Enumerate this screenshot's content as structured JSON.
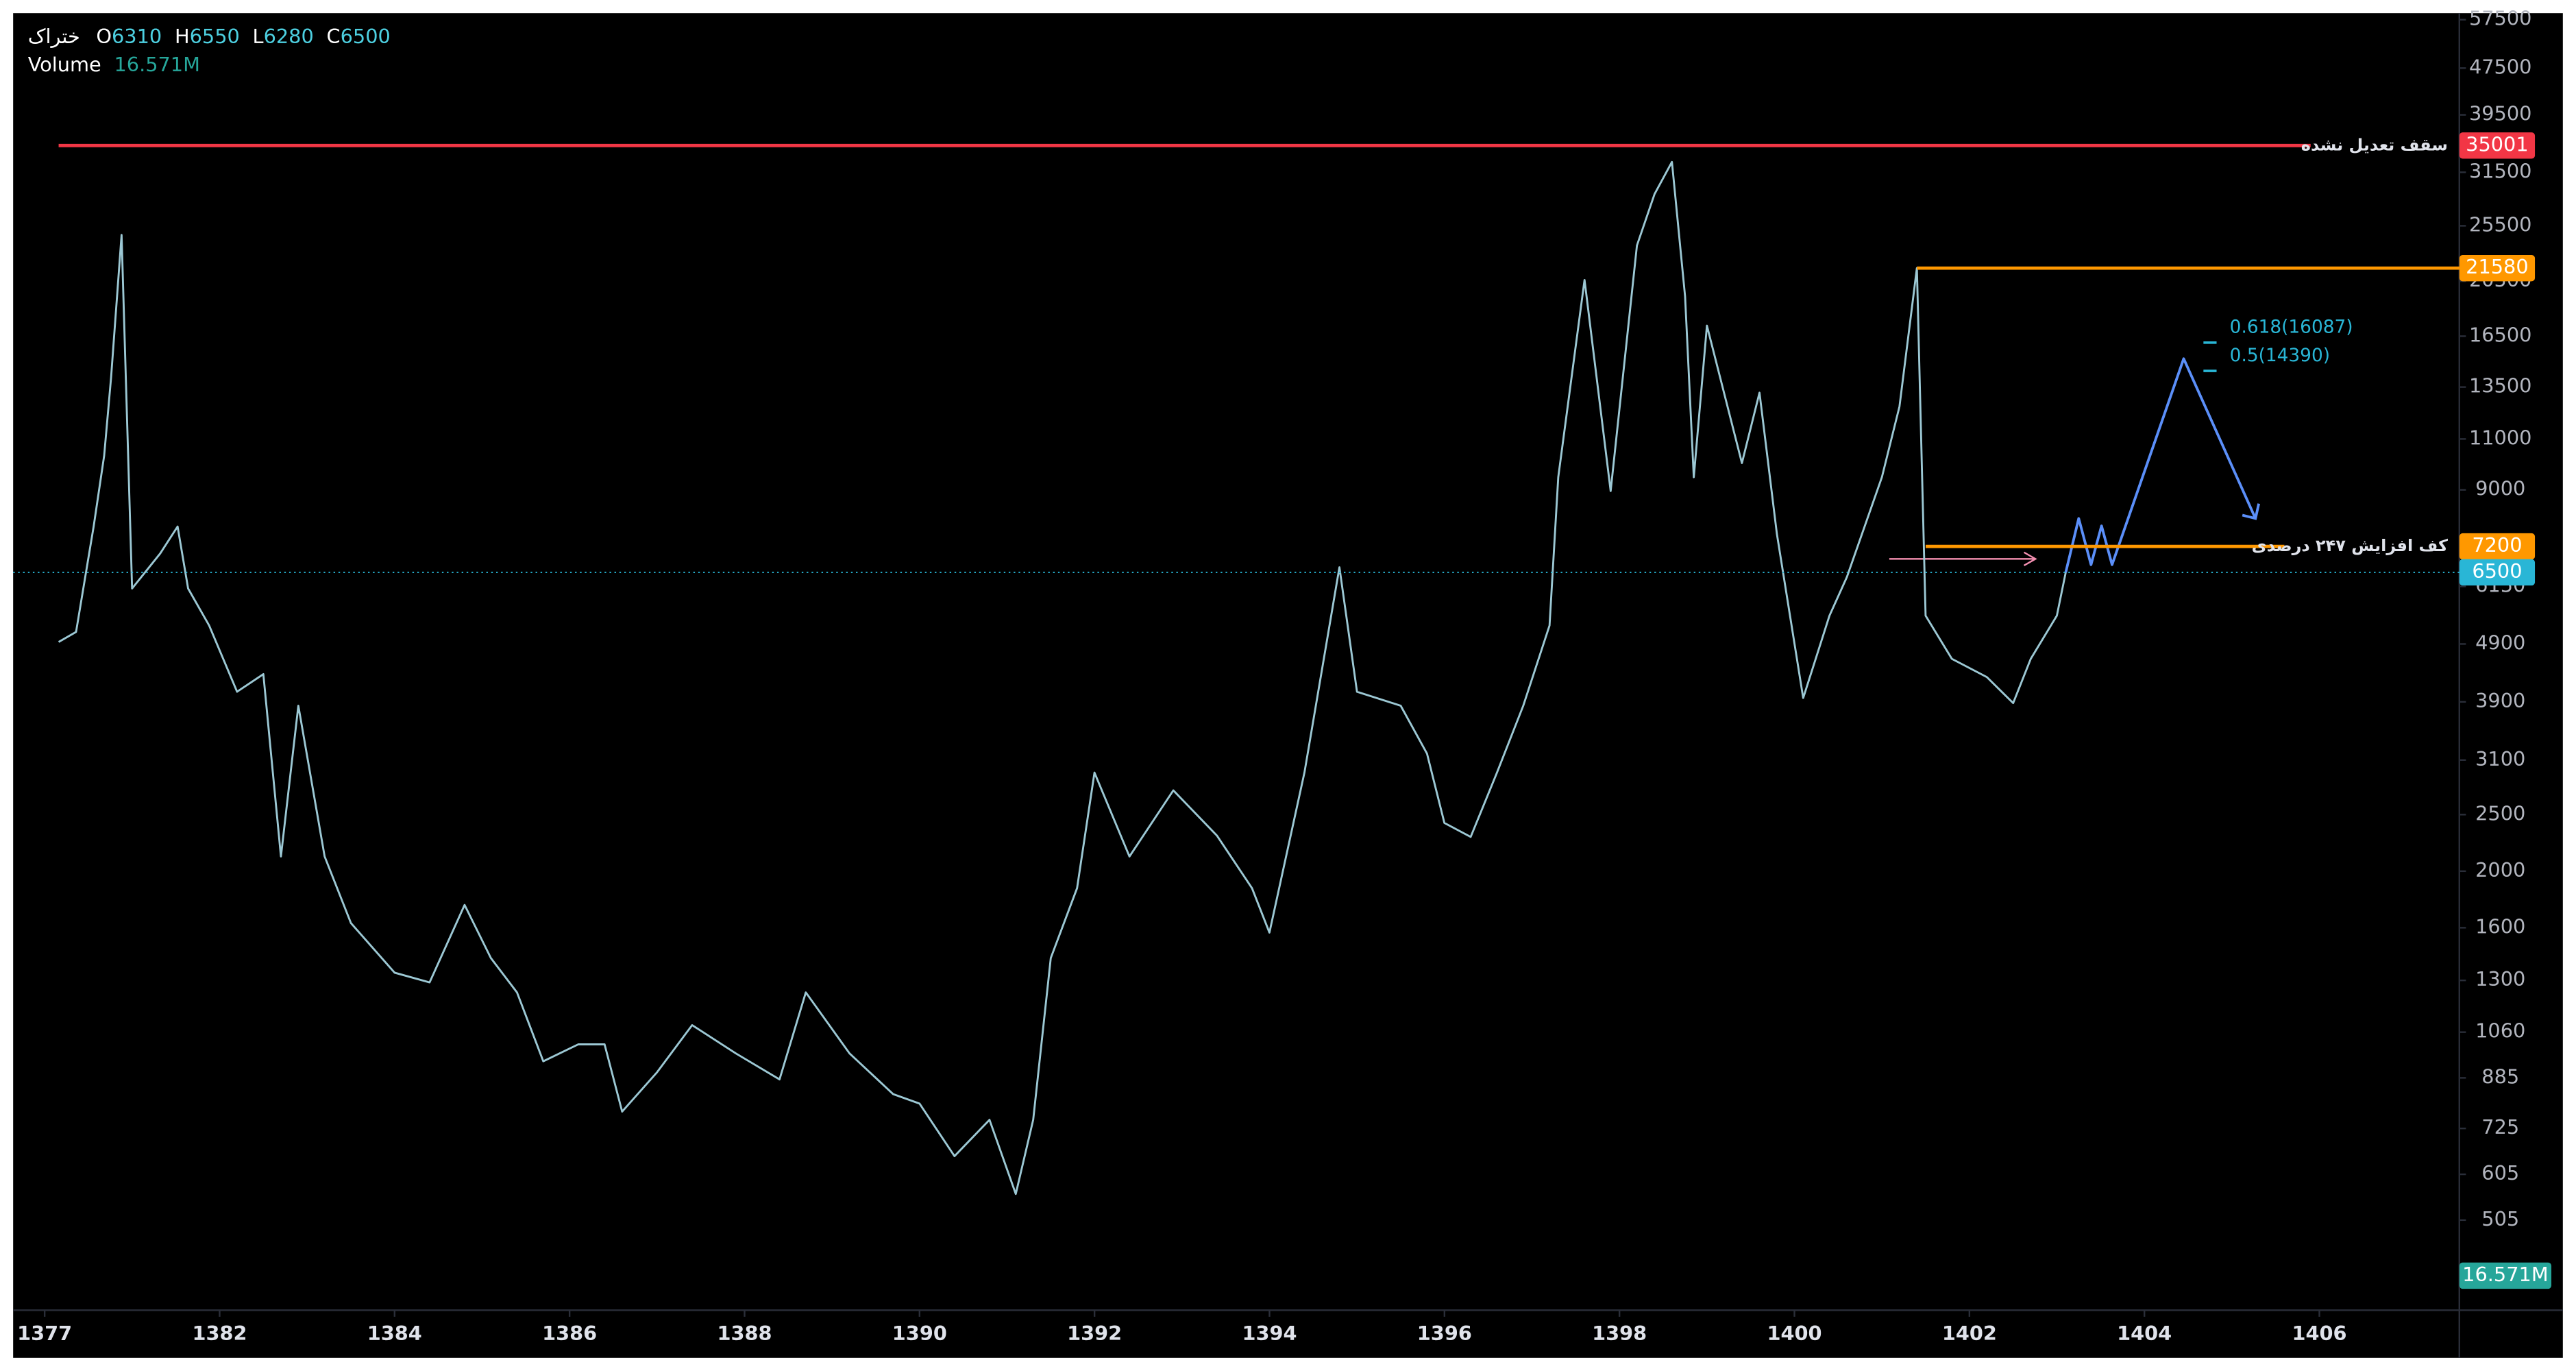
{
  "header": {
    "symbol": "ختراک",
    "ohlc": [
      {
        "key": "O",
        "value": 6310
      },
      {
        "key": "H",
        "value": 6550
      },
      {
        "key": "L",
        "value": 6280
      },
      {
        "key": "C",
        "value": 6500
      }
    ],
    "volume_label": "Volume",
    "volume_value": "16.571M"
  },
  "chart_data": {
    "type": "line",
    "log_scale": true,
    "grid": false,
    "x": [
      1377.4,
      1377.9,
      1378.4,
      1378.7,
      1378.9,
      1379.2,
      1379.5,
      1380.3,
      1380.8,
      1381.1,
      1381.7,
      1382.2,
      1382.5,
      1382.7,
      1382.9,
      1383.2,
      1383.5,
      1384.0,
      1384.4,
      1384.8,
      1385.1,
      1385.4,
      1385.7,
      1386.1,
      1386.4,
      1386.6,
      1387.0,
      1387.4,
      1387.9,
      1388.4,
      1388.7,
      1389.2,
      1389.7,
      1390.0,
      1390.4,
      1390.8,
      1391.1,
      1391.3,
      1391.5,
      1391.8,
      1392.0,
      1392.4,
      1392.9,
      1393.4,
      1393.8,
      1394.0,
      1394.4,
      1394.8,
      1395.0,
      1395.5,
      1395.8,
      1396.0,
      1396.3,
      1396.6,
      1396.9,
      1397.2,
      1397.3,
      1397.6,
      1397.9,
      1398.2,
      1398.4,
      1398.6,
      1398.75,
      1398.85,
      1399.0,
      1399.4,
      1399.6,
      1399.8,
      1400.1,
      1400.4,
      1400.6,
      1401.0,
      1401.2,
      1401.4,
      1401.5,
      1401.8,
      1402.2,
      1402.5,
      1402.7,
      1403.0,
      1403.1
    ],
    "series": [
      {
        "color": "#9cc8d4",
        "values": [
          4940,
          5140,
          7790,
          10300,
          14000,
          24600,
          6100,
          7000,
          7790,
          6100,
          5270,
          4060,
          4350,
          2120,
          3840,
          2120,
          1630,
          1340,
          1290,
          1750,
          1420,
          1240,
          945,
          1010,
          1010,
          775,
          905,
          1090,
          975,
          880,
          1240,
          975,
          830,
          800,
          650,
          750,
          560,
          750,
          1420,
          1870,
          2950,
          2120,
          2750,
          2300,
          1870,
          1570,
          2950,
          6630,
          4060,
          3840,
          3180,
          2420,
          2290,
          2950,
          3840,
          5270,
          9460,
          20600,
          8960,
          23600,
          28900,
          32800,
          19300,
          9460,
          17200,
          10000,
          13200,
          7560,
          3960,
          5480,
          6380,
          9460,
          12500,
          21580,
          5480,
          4620,
          4300,
          3880,
          4620,
          5480,
          6500
        ]
      },
      {
        "color": "#5b8ff9",
        "x": [
          1403.1,
          1403.25,
          1403.39,
          1403.51,
          1403.63,
          1404.45,
          1405.27
        ],
        "values": [
          6500,
          8040,
          6700,
          7810,
          6700,
          15100,
          8040
        ]
      }
    ],
    "xticks": [
      1377,
      1382,
      1384,
      1386,
      1388,
      1390,
      1392,
      1394,
      1396,
      1398,
      1400,
      1402,
      1404,
      1406
    ],
    "xlim": [
      1376.1,
      1407.6
    ],
    "ylim": [
      354,
      59000
    ],
    "yticks": [
      505,
      605,
      725,
      885,
      1060,
      1300,
      1600,
      2000,
      2500,
      3100,
      3900,
      4900,
      6150,
      9000,
      11000,
      13500,
      16500,
      20500,
      25500,
      31500,
      39500,
      47500,
      57500
    ],
    "levels": [
      {
        "value": 35001,
        "text": "سقف تعدیل نشده",
        "color": "#f23645",
        "from": 1377.4,
        "to": 1405.9
      },
      {
        "value": 21580,
        "color": "#ff9800",
        "from": 1401.4,
        "to": 1407.6
      },
      {
        "value": 7200,
        "text": "کف افزایش ۲۴۷ درصدی",
        "color": "#ff9800",
        "from": 1401.5,
        "to": 1405.6
      }
    ],
    "fib": [
      {
        "value": 16087,
        "label": "0.618(16087)"
      },
      {
        "value": 14390,
        "label": "0.5(14390)"
      }
    ],
    "fib_x": 1404.75,
    "last_price": 6500,
    "last_color": "#29b6d6"
  }
}
